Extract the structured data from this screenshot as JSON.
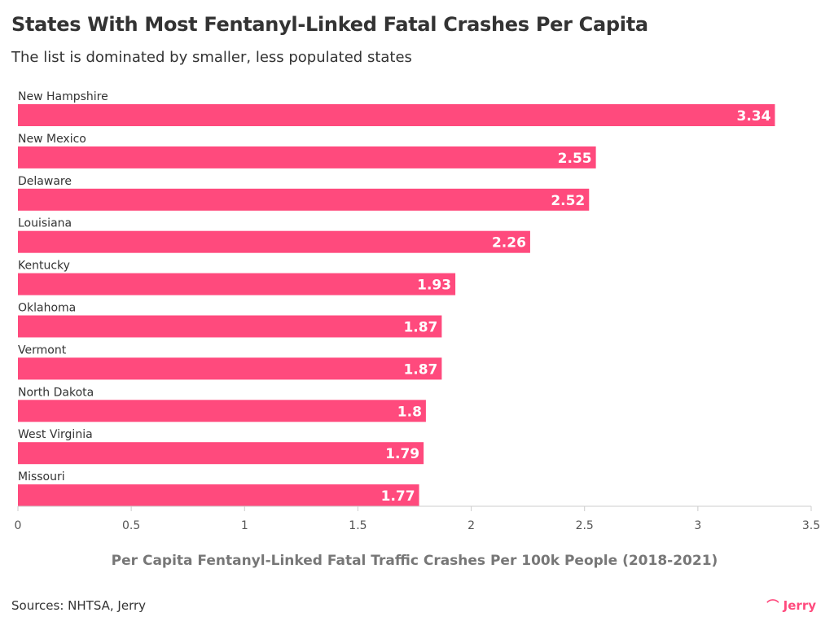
{
  "title": "States With Most Fentanyl-Linked Fatal Crashes Per Capita",
  "subtitle": "The list is dominated by smaller, less populated states",
  "source": "Sources: NHTSA, Jerry",
  "logo": "Jerry",
  "colors": {
    "bar": "#ff4a7d",
    "text": "#333333",
    "axis": "#cccccc"
  },
  "chart_data": {
    "type": "bar",
    "orientation": "horizontal",
    "categories": [
      "New Hampshire",
      "New Mexico",
      "Delaware",
      "Louisiana",
      "Kentucky",
      "Oklahoma",
      "Vermont",
      "North Dakota",
      "West Virginia",
      "Missouri"
    ],
    "values": [
      3.34,
      2.55,
      2.52,
      2.26,
      1.93,
      1.87,
      1.87,
      1.8,
      1.79,
      1.77
    ],
    "value_labels": [
      "3.34",
      "2.55",
      "2.52",
      "2.26",
      "1.93",
      "1.87",
      "1.87",
      "1.8",
      "1.79",
      "1.77"
    ],
    "xlabel": "Per Capita Fentanyl-Linked Fatal Traffic Crashes Per 100k People (2018-2021)",
    "xlim": [
      0,
      3.5
    ],
    "xticks": [
      "0",
      "0.5",
      "1",
      "1.5",
      "2",
      "2.5",
      "3",
      "3.5"
    ],
    "grid": false
  }
}
